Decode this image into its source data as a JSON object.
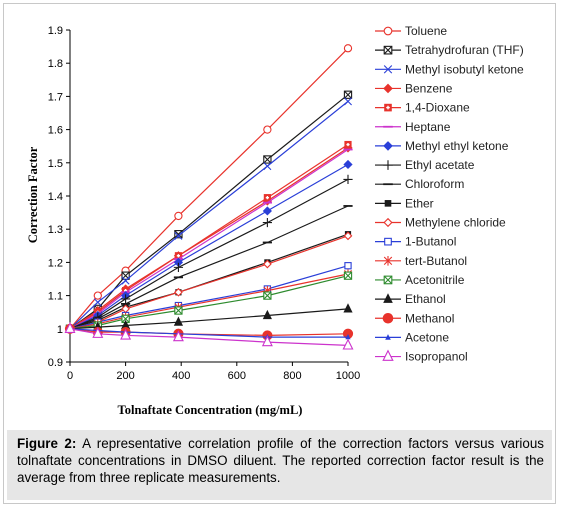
{
  "chart_data": {
    "type": "line",
    "xlabel": "Tolnaftate Concentration (mg/mL)",
    "ylabel": "Correction Factor",
    "xlim": [
      0,
      1000
    ],
    "ylim": [
      0.9,
      1.9
    ],
    "x_ticks": [
      "0",
      "200",
      "400",
      "600",
      "800",
      "1000"
    ],
    "y_ticks": [
      "0.9",
      "1",
      "1.1",
      "1.2",
      "1.3",
      "1.4",
      "1.5",
      "1.6",
      "1.7",
      "1.8",
      "1.9"
    ],
    "x": [
      0,
      100,
      200,
      390,
      710,
      1000
    ],
    "grid": false,
    "legend_position": "right",
    "series": [
      {
        "name": "Toluene",
        "values": [
          1.0,
          1.1,
          1.175,
          1.34,
          1.6,
          1.845
        ],
        "color": "#e8332c",
        "marker": "circle-open"
      },
      {
        "name": "Tetrahydrofuran (THF)",
        "values": [
          1.0,
          1.06,
          1.16,
          1.285,
          1.51,
          1.705
        ],
        "color": "#1a1a1a",
        "marker": "square-x"
      },
      {
        "name": "Methyl isobutyl ketone",
        "values": [
          1.0,
          1.08,
          1.145,
          1.28,
          1.49,
          1.685
        ],
        "color": "#2a3fd8",
        "marker": "x"
      },
      {
        "name": "Benzene",
        "values": [
          1.0,
          1.055,
          1.12,
          1.22,
          1.385,
          1.545
        ],
        "color": "#e8332c",
        "marker": "diamond"
      },
      {
        "name": "1,4-Dioxane",
        "values": [
          1.0,
          1.05,
          1.115,
          1.22,
          1.395,
          1.555
        ],
        "color": "#e8332c",
        "marker": "square-plus"
      },
      {
        "name": "Heptane",
        "values": [
          1.0,
          1.045,
          1.11,
          1.21,
          1.38,
          1.54
        ],
        "color": "#cc33cc",
        "marker": "dash"
      },
      {
        "name": "Methyl ethyl ketone",
        "values": [
          1.0,
          1.04,
          1.1,
          1.2,
          1.355,
          1.495
        ],
        "color": "#2a3fd8",
        "marker": "diamond"
      },
      {
        "name": "Ethyl acetate",
        "values": [
          1.0,
          1.035,
          1.09,
          1.185,
          1.32,
          1.45
        ],
        "color": "#1a1a1a",
        "marker": "plus"
      },
      {
        "name": "Chloroform",
        "values": [
          1.0,
          1.03,
          1.075,
          1.155,
          1.26,
          1.37
        ],
        "color": "#1a1a1a",
        "marker": "dash"
      },
      {
        "name": "Ether",
        "values": [
          1.0,
          1.025,
          1.065,
          1.11,
          1.2,
          1.285
        ],
        "color": "#1a1a1a",
        "marker": "square"
      },
      {
        "name": "Methylene chloride",
        "values": [
          1.0,
          1.02,
          1.06,
          1.11,
          1.195,
          1.28
        ],
        "color": "#e8332c",
        "marker": "diamond-open"
      },
      {
        "name": "1-Butanol",
        "values": [
          1.0,
          1.02,
          1.04,
          1.07,
          1.12,
          1.19
        ],
        "color": "#2a3fd8",
        "marker": "square-open"
      },
      {
        "name": "tert-Butanol",
        "values": [
          1.0,
          1.015,
          1.035,
          1.065,
          1.115,
          1.165
        ],
        "color": "#e8332c",
        "marker": "asterisk"
      },
      {
        "name": "Acetonitrile",
        "values": [
          1.0,
          1.01,
          1.03,
          1.055,
          1.1,
          1.16
        ],
        "color": "#2e8b2e",
        "marker": "square-x"
      },
      {
        "name": "Ethanol",
        "values": [
          1.0,
          1.005,
          1.01,
          1.02,
          1.04,
          1.06
        ],
        "color": "#1a1a1a",
        "marker": "triangle"
      },
      {
        "name": "Methanol",
        "values": [
          1.0,
          0.99,
          0.99,
          0.985,
          0.98,
          0.985
        ],
        "color": "#e8332c",
        "marker": "circle"
      },
      {
        "name": "Acetone",
        "values": [
          1.0,
          0.995,
          0.99,
          0.985,
          0.975,
          0.975
        ],
        "color": "#2a3fd8",
        "marker": "triangle-small"
      },
      {
        "name": "Isopropanol",
        "values": [
          1.0,
          0.985,
          0.98,
          0.975,
          0.96,
          0.95
        ],
        "color": "#cc33cc",
        "marker": "triangle-open"
      }
    ]
  },
  "caption": {
    "label": "Figure 2:",
    "text": " A representative correlation profile of the correction factors versus various tolnaftate concentrations in DMSO diluent. The reported correction factor result is the average from three replicate measurements."
  }
}
